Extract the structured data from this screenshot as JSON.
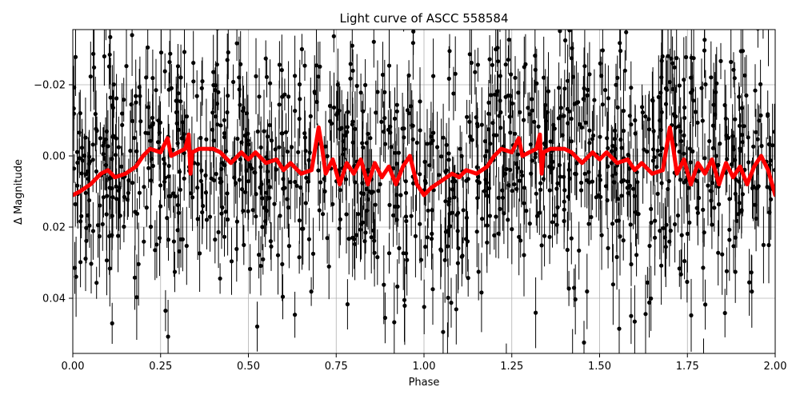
{
  "chart_data": {
    "type": "scatter",
    "title": "Light curve of ASCC 558584",
    "xlabel": "Phase",
    "ylabel": "Δ Magnitude",
    "xlim": [
      0.0,
      2.0
    ],
    "ylim": [
      0.0555,
      -0.0355
    ],
    "y_inverted": true,
    "grid": true,
    "x_ticks": [
      0.0,
      0.25,
      0.5,
      0.75,
      1.0,
      1.25,
      1.5,
      1.75,
      2.0
    ],
    "x_tick_labels": [
      "0.00",
      "0.25",
      "0.50",
      "0.75",
      "1.00",
      "1.25",
      "1.50",
      "1.75",
      "2.00"
    ],
    "y_ticks": [
      -0.02,
      0.0,
      0.02,
      0.04
    ],
    "y_tick_labels": [
      "−0.02",
      "0.00",
      "0.02",
      "0.04"
    ],
    "colors": {
      "points": "#000000",
      "binned": "#ff0000",
      "grid": "#b0b0b0"
    },
    "series": [
      {
        "role": "observations",
        "style": "points with vertical error bars",
        "summary": {
          "n_points": 1200,
          "mean": 0.004,
          "scatter": 0.018,
          "typical_error": 0.008
        }
      },
      {
        "role": "binned_curve",
        "style": "thick red line",
        "x": [
          0.0,
          0.02,
          0.05,
          0.08,
          0.1,
          0.12,
          0.15,
          0.18,
          0.2,
          0.22,
          0.25,
          0.27,
          0.28,
          0.3,
          0.32,
          0.33,
          0.335,
          0.34,
          0.36,
          0.4,
          0.42,
          0.45,
          0.48,
          0.5,
          0.52,
          0.55,
          0.58,
          0.6,
          0.62,
          0.65,
          0.68,
          0.7,
          0.71,
          0.72,
          0.74,
          0.76,
          0.78,
          0.8,
          0.82,
          0.84,
          0.86,
          0.88,
          0.9,
          0.92,
          0.94,
          0.96,
          0.98,
          1.0,
          1.02,
          1.05,
          1.08,
          1.1,
          1.12,
          1.15,
          1.18,
          1.2,
          1.22,
          1.25,
          1.27,
          1.28,
          1.3,
          1.32,
          1.33,
          1.335,
          1.34,
          1.36,
          1.4,
          1.42,
          1.45,
          1.48,
          1.5,
          1.52,
          1.55,
          1.58,
          1.6,
          1.62,
          1.65,
          1.68,
          1.7,
          1.71,
          1.72,
          1.74,
          1.76,
          1.78,
          1.8,
          1.82,
          1.84,
          1.86,
          1.88,
          1.9,
          1.92,
          1.94,
          1.96,
          1.98,
          2.0
        ],
        "y": [
          0.011,
          0.01,
          0.008,
          0.005,
          0.004,
          0.006,
          0.005,
          0.003,
          0.0,
          -0.002,
          -0.001,
          -0.005,
          0.0,
          -0.001,
          -0.002,
          -0.006,
          0.005,
          -0.001,
          -0.002,
          -0.002,
          -0.001,
          0.002,
          -0.001,
          0.001,
          -0.001,
          0.002,
          0.001,
          0.004,
          0.002,
          0.005,
          0.004,
          -0.008,
          -0.002,
          0.005,
          0.001,
          0.008,
          0.002,
          0.005,
          0.001,
          0.008,
          0.002,
          0.006,
          0.003,
          0.008,
          0.003,
          0.0,
          0.008,
          0.011,
          0.009,
          0.007,
          0.005,
          0.006,
          0.004,
          0.005,
          0.003,
          0.0,
          -0.002,
          -0.001,
          -0.005,
          0.0,
          -0.001,
          -0.002,
          -0.006,
          0.005,
          -0.001,
          -0.002,
          -0.002,
          -0.001,
          0.002,
          -0.001,
          0.001,
          -0.001,
          0.002,
          0.001,
          0.004,
          0.002,
          0.005,
          0.004,
          -0.008,
          -0.002,
          0.005,
          0.001,
          0.008,
          0.002,
          0.005,
          0.001,
          0.008,
          0.002,
          0.006,
          0.003,
          0.008,
          0.003,
          0.0,
          0.004,
          0.011
        ]
      }
    ]
  }
}
